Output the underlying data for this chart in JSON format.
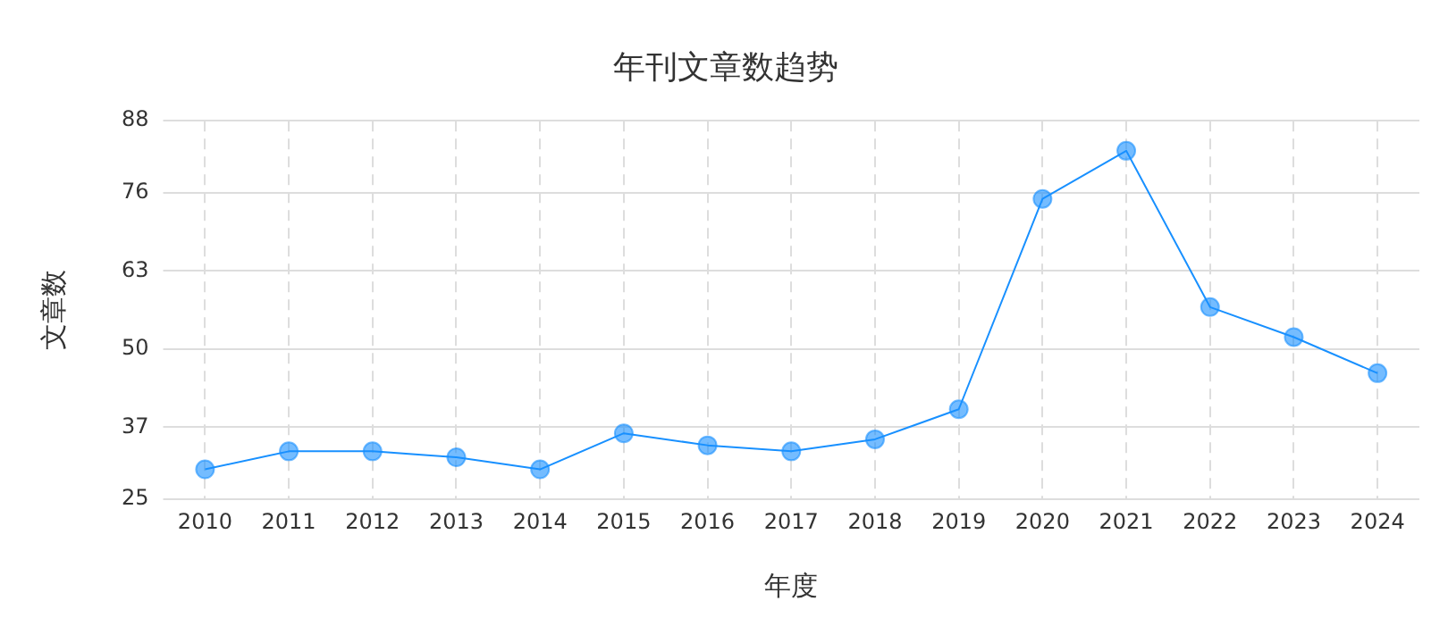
{
  "chart_data": {
    "type": "line",
    "title": "年刊文章数趋势",
    "xlabel": "年度",
    "ylabel": "文章数",
    "categories": [
      "2010",
      "2011",
      "2012",
      "2013",
      "2014",
      "2015",
      "2016",
      "2017",
      "2018",
      "2019",
      "2020",
      "2021",
      "2022",
      "2023",
      "2024"
    ],
    "series": [
      {
        "color": "#1890ff",
        "values": [
          30,
          33,
          33,
          32,
          30,
          36,
          34,
          33,
          35,
          40,
          75,
          83,
          57,
          52,
          46
        ]
      }
    ],
    "ylim": [
      25,
      88
    ],
    "yticks": [
      25,
      37,
      50,
      63,
      76,
      88
    ],
    "grid": true,
    "marker": "circle",
    "line_style": "solid",
    "legend": false
  }
}
